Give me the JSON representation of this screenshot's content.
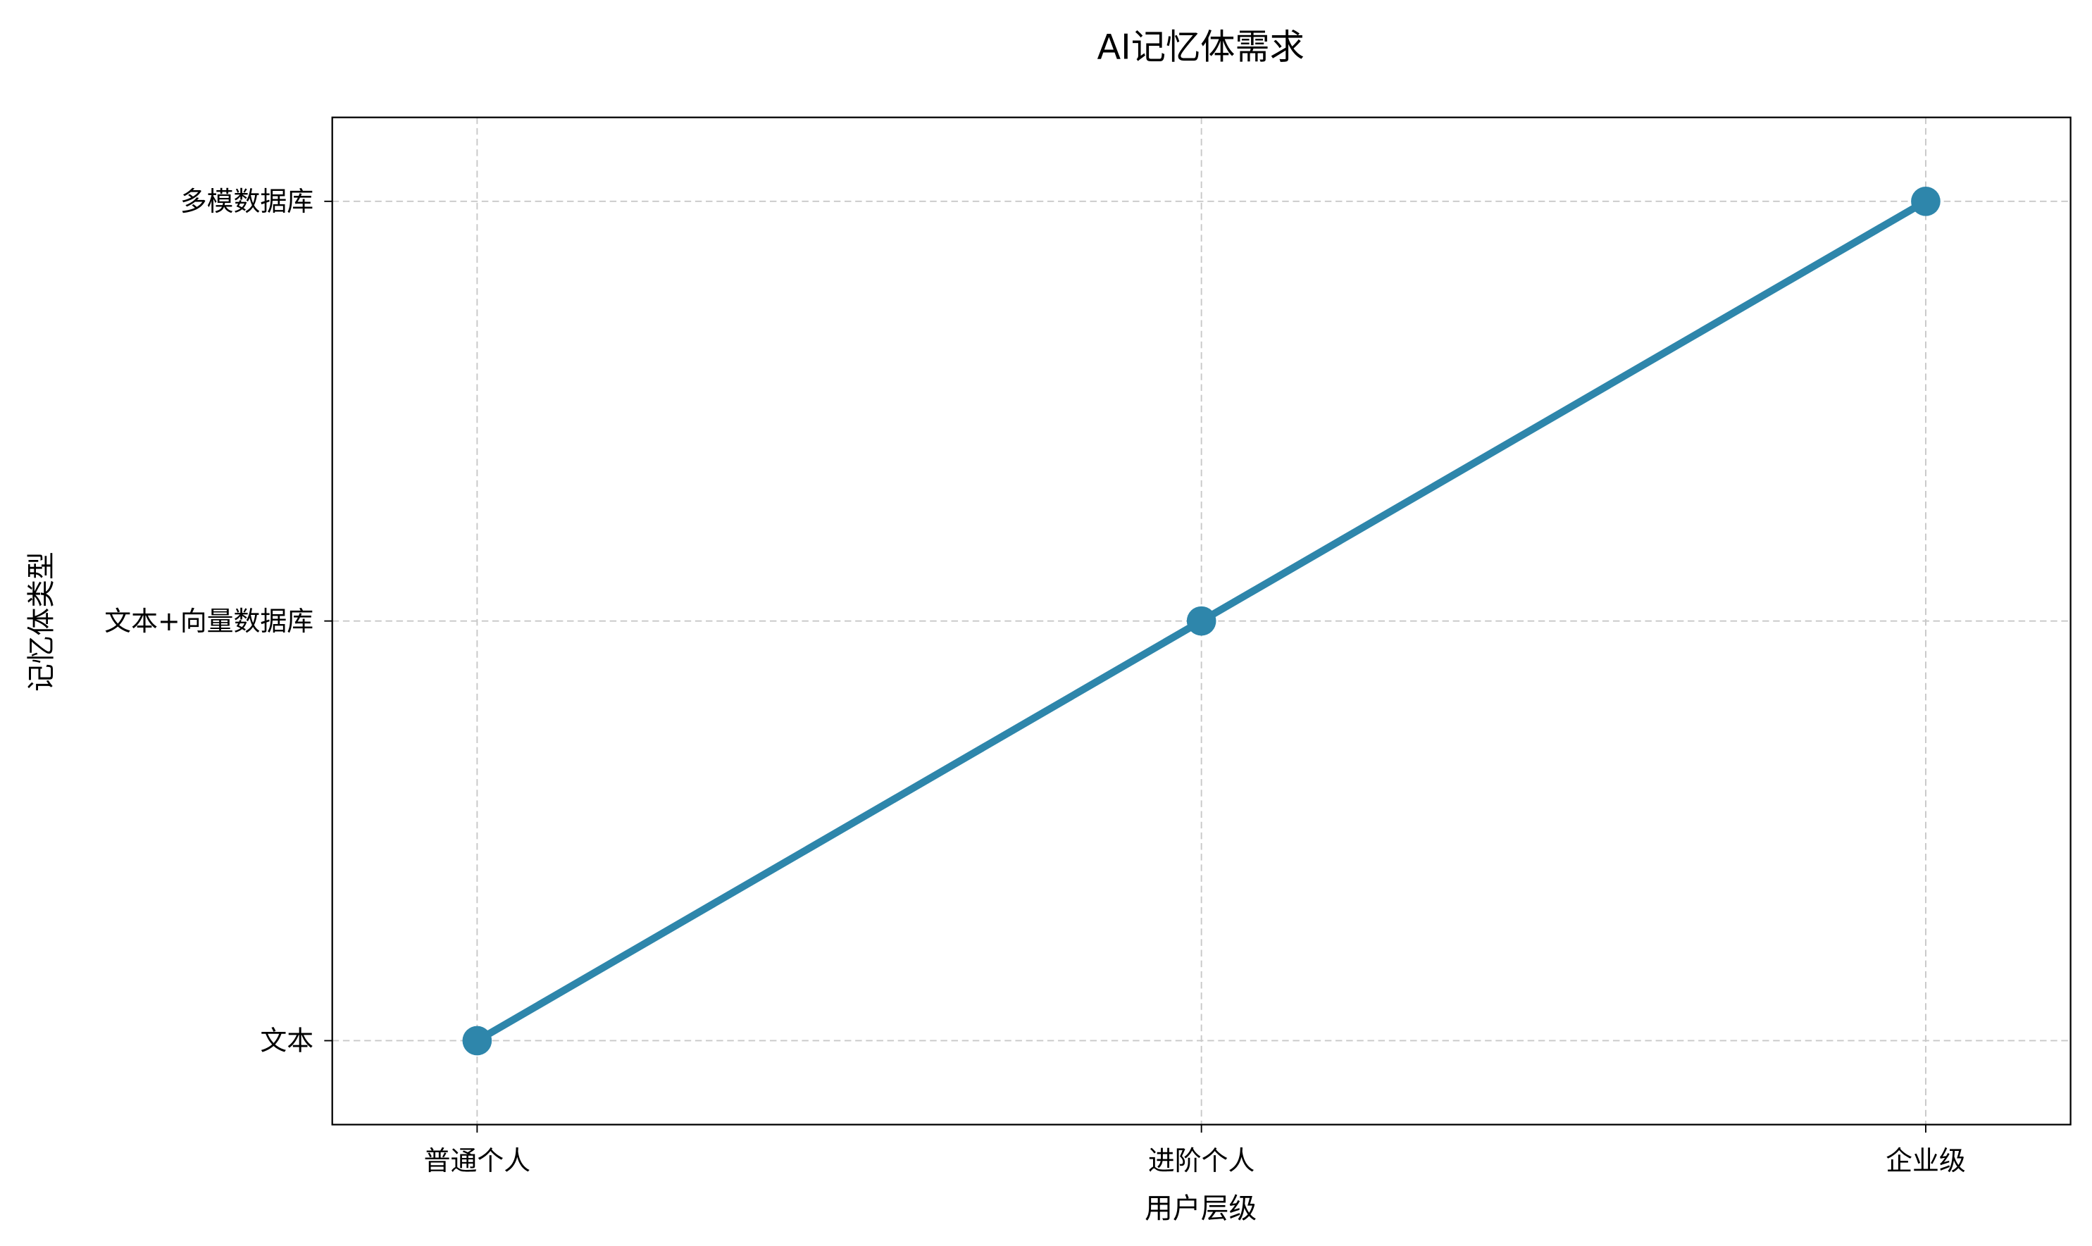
{
  "chart_data": {
    "type": "line",
    "title": "AI记忆体需求",
    "xlabel": "用户层级",
    "ylabel": "记忆体类型",
    "categories": [
      "普通个人",
      "进阶个人",
      "企业级"
    ],
    "y_categories": [
      "文本",
      "文本+向量数据库",
      "多模数据库"
    ],
    "series": [
      {
        "values": [
          "文本",
          "文本+向量数据库",
          "多模数据库"
        ],
        "color": "#2E86AB",
        "marker": "circle"
      }
    ],
    "xlim": [
      -0.2,
      2.2
    ],
    "ylim": [
      -0.2,
      2.2
    ],
    "grid": true,
    "grid_style": "dashed"
  }
}
